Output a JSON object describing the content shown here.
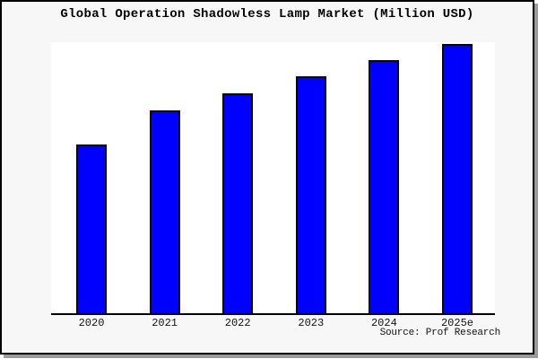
{
  "title": "Global Operation Shadowless Lamp Market (Million USD)",
  "source_credit": "Source: Prof Research",
  "colors": {
    "bar_fill": "#0000ff",
    "bar_border": "#000000",
    "axis": "#000000",
    "plot_background": "#ffffff",
    "figure_background": "#f7f7f7",
    "frame_border": "#000000",
    "frame_shadow": "#9c9c9c",
    "text": "#000000"
  },
  "chart_data": {
    "type": "bar",
    "title": "Global Operation Shadowless Lamp Market (Million USD)",
    "categories": [
      "2020",
      "2021",
      "2022",
      "2023",
      "2024",
      "2025e"
    ],
    "values": [
      62.7,
      75.2,
      81.4,
      87.8,
      93.8,
      100
    ],
    "values_estimated_relative_to_2025e": true,
    "xlabel": "",
    "ylabel": "",
    "ylim": [
      0,
      100.5
    ],
    "grid": false,
    "legend": false,
    "y_axis_labels_shown": false,
    "source": "Source: Prof Research"
  }
}
